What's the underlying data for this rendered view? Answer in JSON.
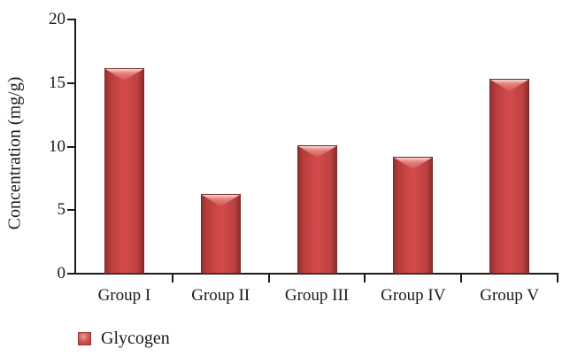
{
  "chart_data": {
    "type": "bar",
    "title": "",
    "categories": [
      "Group I",
      "Group II",
      "Group III",
      "Group IV",
      "Group V"
    ],
    "series": [
      {
        "name": "Glycogen",
        "values": [
          16.2,
          6.3,
          10.1,
          9.2,
          15.3
        ]
      }
    ],
    "xlabel": "",
    "ylabel": "Concentration (mg/g)",
    "ylim": [
      0,
      20
    ],
    "yticks": [
      0,
      5,
      10,
      15,
      20
    ],
    "grid": false,
    "legend_position": "bottom-left",
    "colors": {
      "bar_fill": "#c84343",
      "bar_edge": "#7c2929",
      "bar_highlight": "#e8a29a",
      "axis": "#1a1a1a",
      "text": "#1a1a1a",
      "background": "#ffffff"
    }
  }
}
